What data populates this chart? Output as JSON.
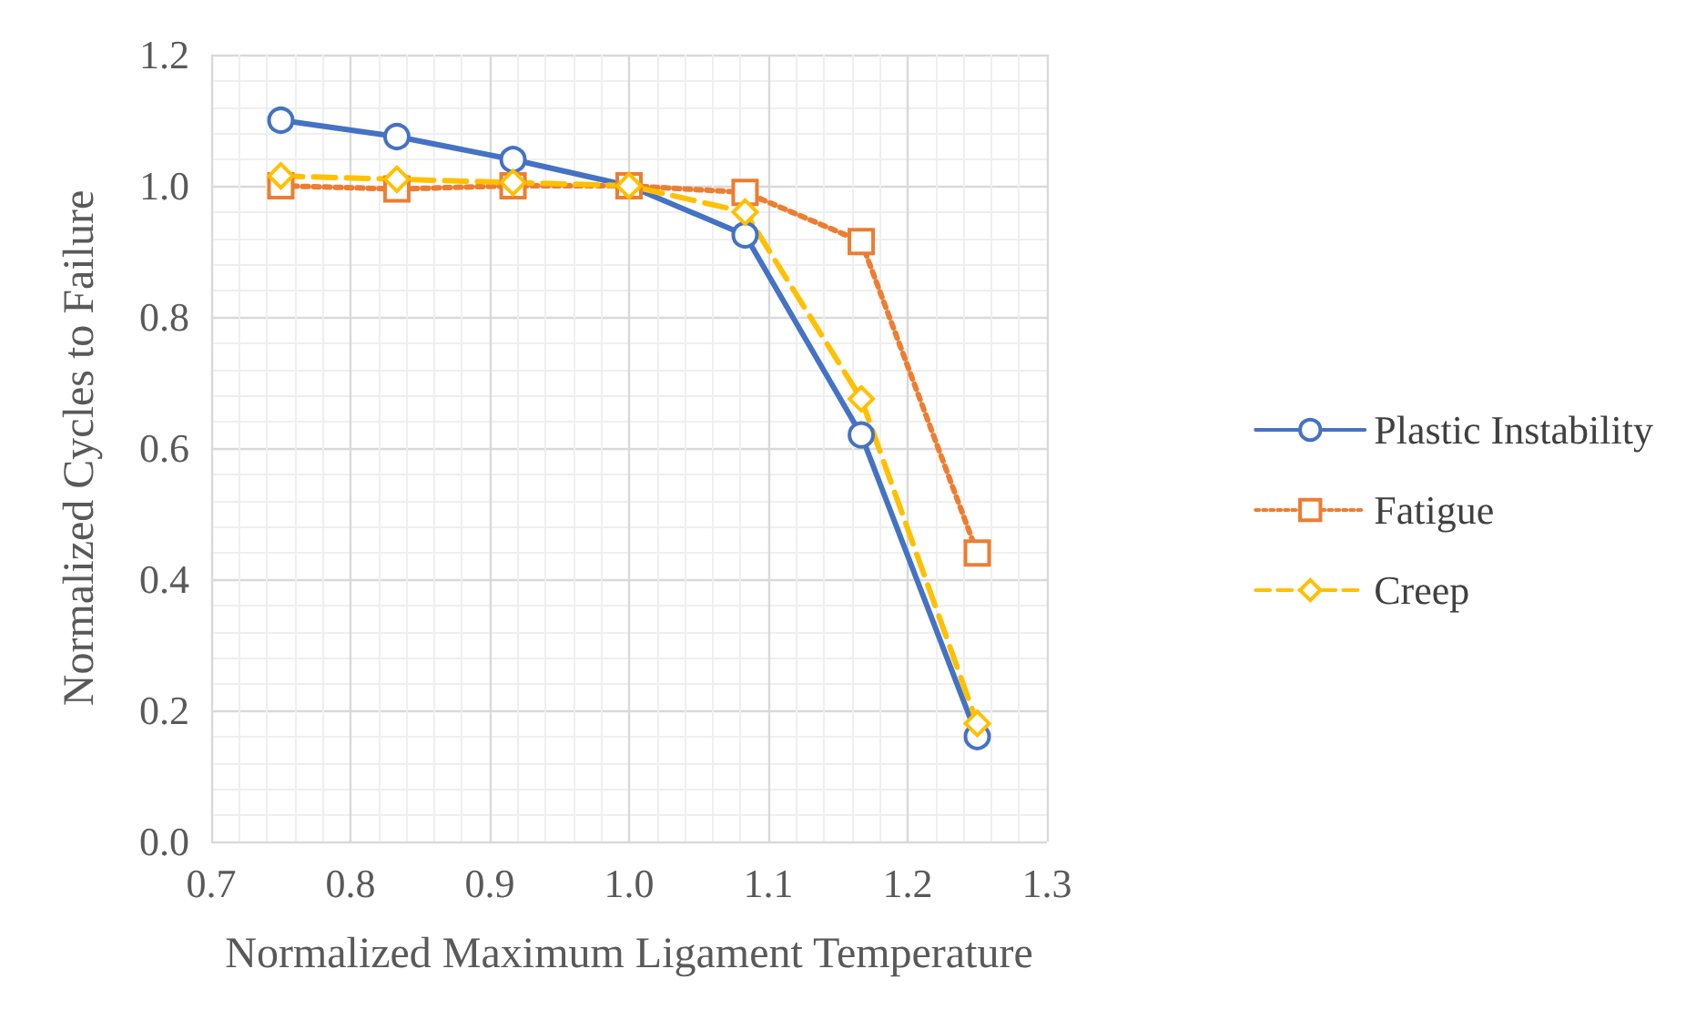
{
  "chart_data": {
    "type": "line",
    "xlabel": "Normalized Maximum Ligament Temperature",
    "ylabel": "Normalized Cycles to Failure",
    "x": [
      0.75,
      0.8333,
      0.9167,
      1.0,
      1.0833,
      1.1667,
      1.25
    ],
    "series": [
      {
        "name": "Plastic Instability",
        "color": "#4472c4",
        "marker": "circle",
        "line_style": "solid",
        "values": [
          1.1,
          1.075,
          1.04,
          1.0,
          0.925,
          0.62,
          0.16
        ]
      },
      {
        "name": "Fatigue",
        "color": "#ed7d31",
        "marker": "square",
        "line_style": "dotted",
        "values": [
          1.0,
          0.995,
          1.0,
          1.0,
          0.99,
          0.915,
          0.44
        ]
      },
      {
        "name": "Creep",
        "color": "#ffc000",
        "marker": "diamond",
        "line_style": "dashed",
        "values": [
          1.015,
          1.01,
          1.005,
          1.0,
          0.96,
          0.675,
          0.18
        ]
      }
    ],
    "xlim": [
      0.7,
      1.3
    ],
    "xticks": [
      0.7,
      0.8,
      0.9,
      {
        "value": 1.0,
        "label": "1.0"
      },
      1.1,
      1.2,
      1.3
    ],
    "ylim": [
      0,
      1.2
    ],
    "yticks": [
      {
        "value": 0,
        "label": "0.0"
      },
      0.2,
      0.4,
      0.6,
      0.8,
      {
        "value": 1.0,
        "label": "1.0"
      },
      1.2
    ],
    "grid": true,
    "legend": "right"
  }
}
